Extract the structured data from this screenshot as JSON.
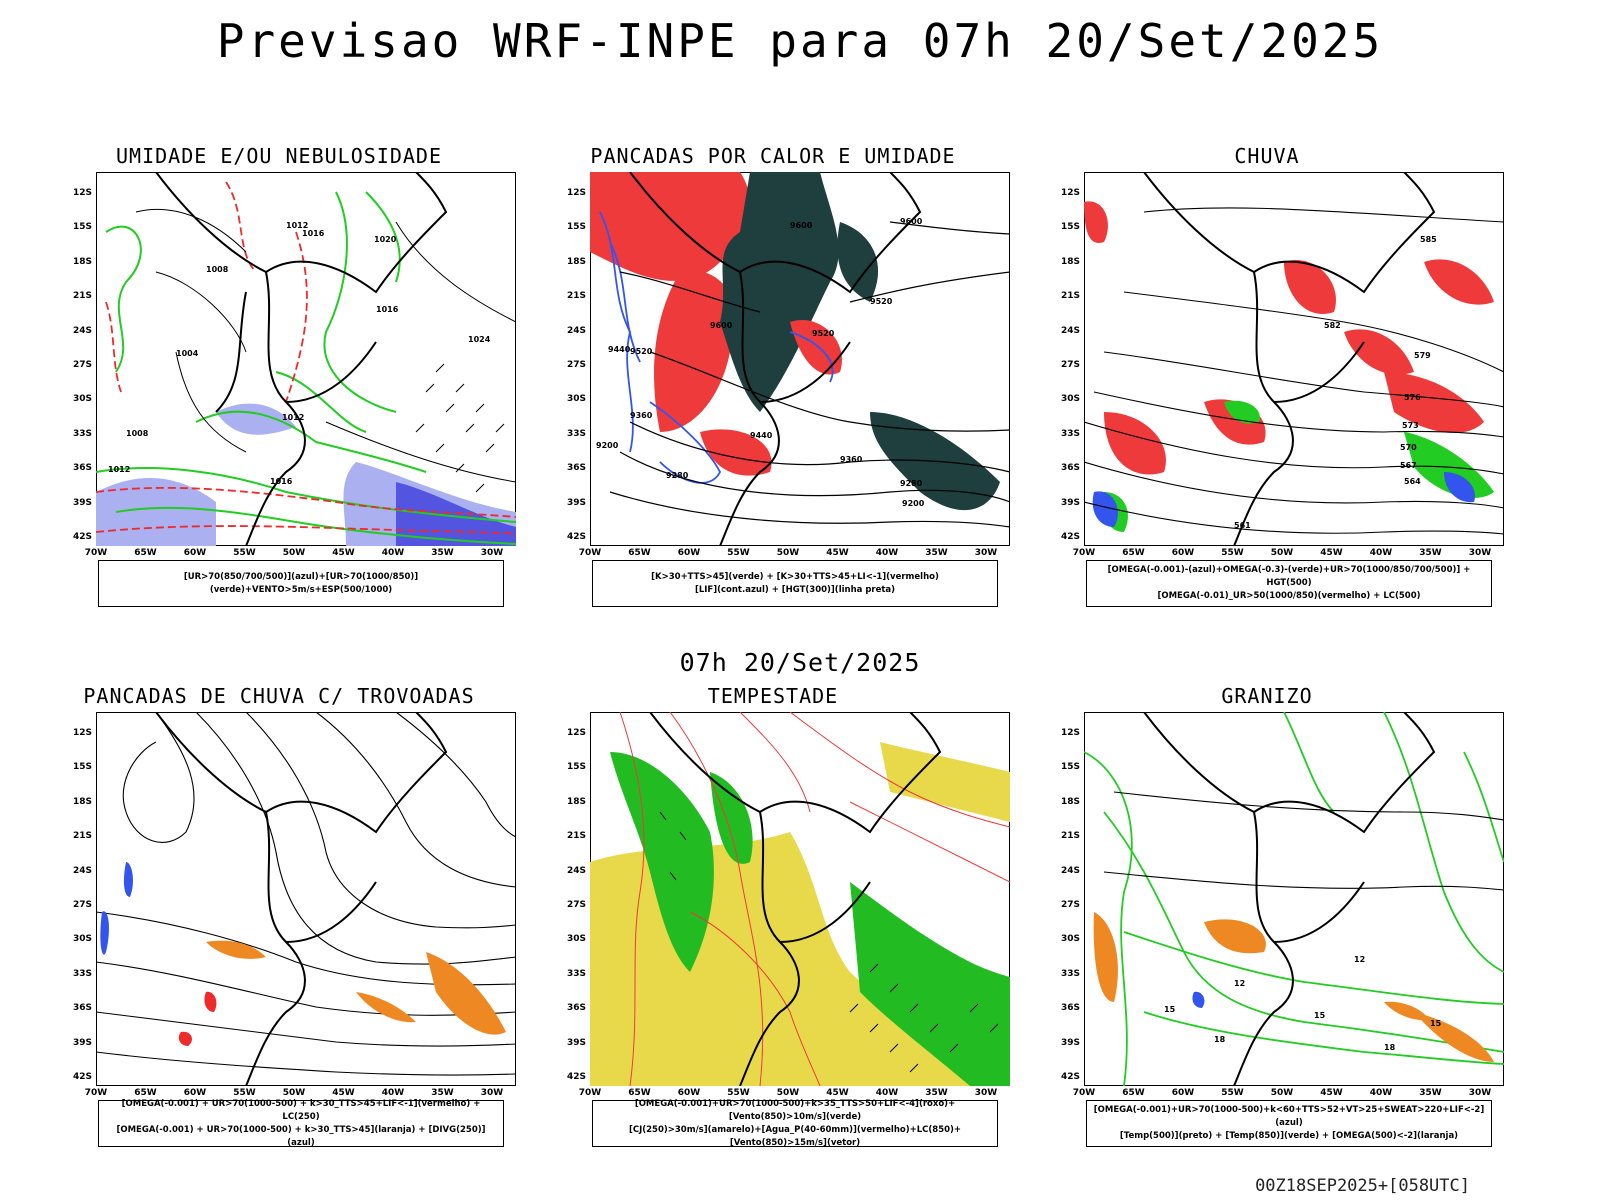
{
  "title": "Previsao WRF-INPE  para 07h 20/Set/2025",
  "mid_label": "07h 20/Set/2025",
  "footer": "00Z18SEP2025+[058UTC]",
  "axes": {
    "lat_labels": [
      "12S",
      "15S",
      "18S",
      "21S",
      "24S",
      "27S",
      "30S",
      "33S",
      "36S",
      "39S",
      "42S"
    ],
    "lon_labels": [
      "70W",
      "65W",
      "60W",
      "55W",
      "50W",
      "45W",
      "40W",
      "35W",
      "30W"
    ]
  },
  "colors": {
    "blue": "#3355ee",
    "green": "#22cc22",
    "red": "#ee2a2a",
    "dark_teal": "#1f3e3e",
    "lavender": "#aab0f0",
    "yellow": "#e8d94a",
    "orange": "#ee8822"
  },
  "panels": [
    {
      "title": "UMIDADE E/OU NEBULOSIDADE",
      "legend": [
        "[UR>70(850/700/500)](azul)+[UR>70(1000/850)](verde)+VENTO>5m/s+ESP(500/1000)"
      ],
      "contour_labels": [
        "1012",
        "1016",
        "1008",
        "1020",
        "1004",
        "1016",
        "1024",
        "1012",
        "1008",
        "1012",
        "1016"
      ]
    },
    {
      "title": "PANCADAS POR CALOR E UMIDADE",
      "legend": [
        "[K>30+TTS>45](verde) + [K>30+TTS>45+LI<-1](vermelho)",
        "[LIF](cont.azul) + [HGT(300)](linha preta)"
      ],
      "contour_labels": [
        "9600",
        "9600",
        "9520",
        "9520",
        "9600",
        "9440",
        "9520",
        "9440",
        "9360",
        "9280",
        "9200",
        "9360",
        "9280",
        "9200"
      ]
    },
    {
      "title": "CHUVA",
      "legend": [
        "[OMEGA(-0.001)-(azul)+OMEGA(-0.3)-(verde)+UR>70(1000/850/700/500)] + HGT(500)",
        "[OMEGA(-0.01)_UR>50(1000/850)(vermelho) + LC(500)"
      ],
      "contour_labels": [
        "585",
        "582",
        "579",
        "576",
        "573",
        "570",
        "567",
        "564",
        "561"
      ]
    },
    {
      "title": "PANCADAS DE CHUVA C/ TROVOADAS",
      "legend": [
        "[OMEGA(-0.001) + UR>70(1000-500) + k>30_TTS>45+LIF<-1](vermelho) + LC(250)",
        "[OMEGA(-0.001) + UR>70(1000-500) + k>30_TTS>45](laranja) + [DIVG(250)](azul)"
      ],
      "contour_labels": []
    },
    {
      "title": "TEMPESTADE",
      "legend": [
        "[OMEGA(-0.001)+UR>70(1000-500)+k>35_TTS>50+LIF<-4](roxo)+[Vento(850)>10m/s](verde)",
        "[CJ(250)>30m/s](amarelo)+[Agua_P(40-60mm)](vermelho)+LC(850)+[Vento(850)>15m/s](vetor)"
      ],
      "contour_labels": []
    },
    {
      "title": "GRANIZO",
      "legend": [
        "[OMEGA(-0.001)+UR>70(1000-500)+k<60+TTS>52+VT>25+SWEAT>220+LIF<-2](azul)",
        "[Temp(500)](preto) + [Temp(850)](verde) + [OMEGA(500)<-2](laranja)"
      ],
      "contour_labels": [
        "12",
        "12",
        "15",
        "15",
        "18",
        "18",
        "15"
      ]
    }
  ]
}
